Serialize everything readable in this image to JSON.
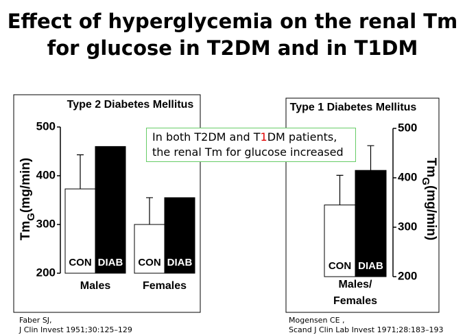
{
  "title_lines": [
    "Effect of hyperglycemia on the renal Tm",
    "for glucose in T2DM and in T1DM"
  ],
  "callout": {
    "line1": [
      "In both T2DM and T",
      "1",
      "DM patients,"
    ],
    "line2": "the renal Tm for glucose increased",
    "highlight_color": "#e00000",
    "border_color": "#66cc66"
  },
  "chart_data": [
    {
      "type": "bar",
      "title": "Type 2 Diabetes Mellitus",
      "y_label": [
        "Tm",
        "G",
        "(mg/min)"
      ],
      "categories": [
        "Males",
        "Females"
      ],
      "series": [
        {
          "name": "CON",
          "color": "#ffffff",
          "values": [
            373,
            300
          ],
          "errors": [
            70,
            55
          ]
        },
        {
          "name": "DIAB",
          "color": "#000000",
          "values": [
            460,
            355
          ]
        }
      ],
      "ylim": [
        200,
        500
      ],
      "yticks": [
        200,
        300,
        400,
        500
      ]
    },
    {
      "type": "bar",
      "title": "Type 1 Diabetes Mellitus",
      "y_label": [
        "Tm",
        "G",
        "(mg/min)"
      ],
      "categories": [
        "Males/ Females"
      ],
      "series": [
        {
          "name": "CON",
          "color": "#ffffff",
          "values": [
            345
          ],
          "errors": [
            60
          ]
        },
        {
          "name": "DIAB",
          "color": "#000000",
          "values": [
            415
          ],
          "errors": [
            50
          ]
        }
      ],
      "ylim": [
        200,
        500
      ],
      "yticks": [
        200,
        300,
        400,
        500
      ]
    }
  ],
  "citations": [
    [
      "Faber SJ,",
      "J Clin Invest 1951;30:125–129"
    ],
    [
      "Mogensen CE ,",
      "Scand J Clin Lab Invest 1971;28:183–193"
    ]
  ]
}
